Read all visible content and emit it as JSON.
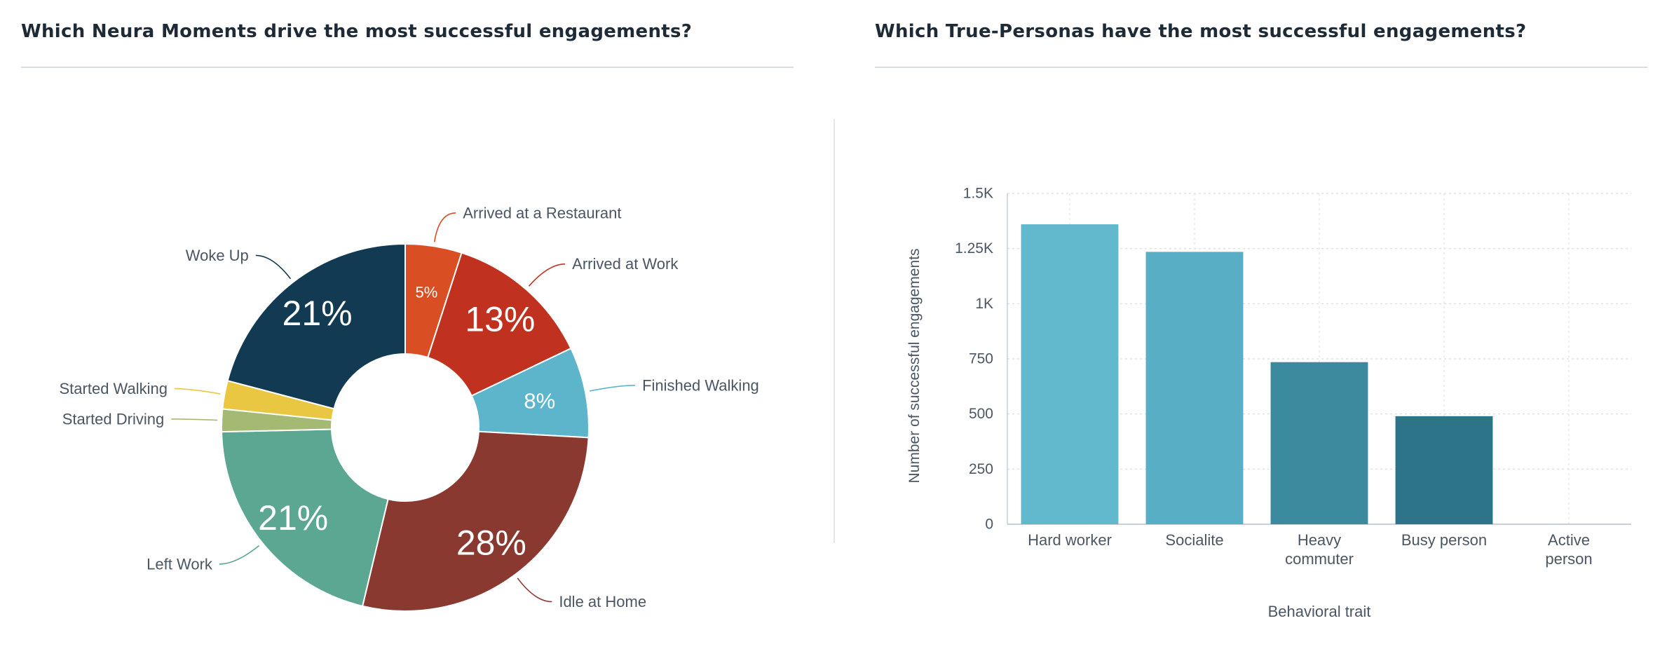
{
  "left_panel": {
    "title": "Which Neura Moments drive the most successful engagements?"
  },
  "right_panel": {
    "title": "Which True-Personas have the most successful engagements?"
  },
  "chart_data": [
    {
      "type": "pie",
      "variant": "donut",
      "title": "Which Neura Moments drive the most successful engagements?",
      "slices": [
        {
          "label": "Arrived at a Restaurant",
          "value": 5,
          "display": "5%",
          "color": "#d94f23"
        },
        {
          "label": "Arrived at Work",
          "value": 13,
          "display": "13%",
          "color": "#c0321f"
        },
        {
          "label": "Finished Walking",
          "value": 8,
          "display": "8%",
          "color": "#5db5cc"
        },
        {
          "label": "Idle at Home",
          "value": 28,
          "display": "28%",
          "color": "#8a3930"
        },
        {
          "label": "Left Work",
          "value": 21,
          "display": "21%",
          "color": "#5ca792"
        },
        {
          "label": "Started Driving",
          "value": 2,
          "display": "",
          "color": "#a4b972"
        },
        {
          "label": "Started Walking",
          "value": 2.5,
          "display": "",
          "color": "#e9c743"
        },
        {
          "label": "Woke Up",
          "value": 21,
          "display": "21%",
          "color": "#123a52"
        }
      ]
    },
    {
      "type": "bar",
      "title": "Which True-Personas have the most successful engagements?",
      "xlabel": "Behavioral trait",
      "ylabel": "Number of successful engagements",
      "categories": [
        "Hard worker",
        "Socialite",
        "Heavy commuter",
        "Busy person",
        "Active person"
      ],
      "values": [
        1360,
        1235,
        735,
        490,
        0
      ],
      "colors": [
        "#62b8cc",
        "#58aec4",
        "#3b8a9e",
        "#2e7488",
        "#2e7488"
      ],
      "ylim": [
        0,
        1500
      ],
      "yticks": [
        0,
        250,
        500,
        750,
        1000,
        1250,
        1500
      ],
      "ytick_labels": [
        "0",
        "250",
        "500",
        "750",
        "1K",
        "1.25K",
        "1.5K"
      ],
      "grid": true
    }
  ]
}
